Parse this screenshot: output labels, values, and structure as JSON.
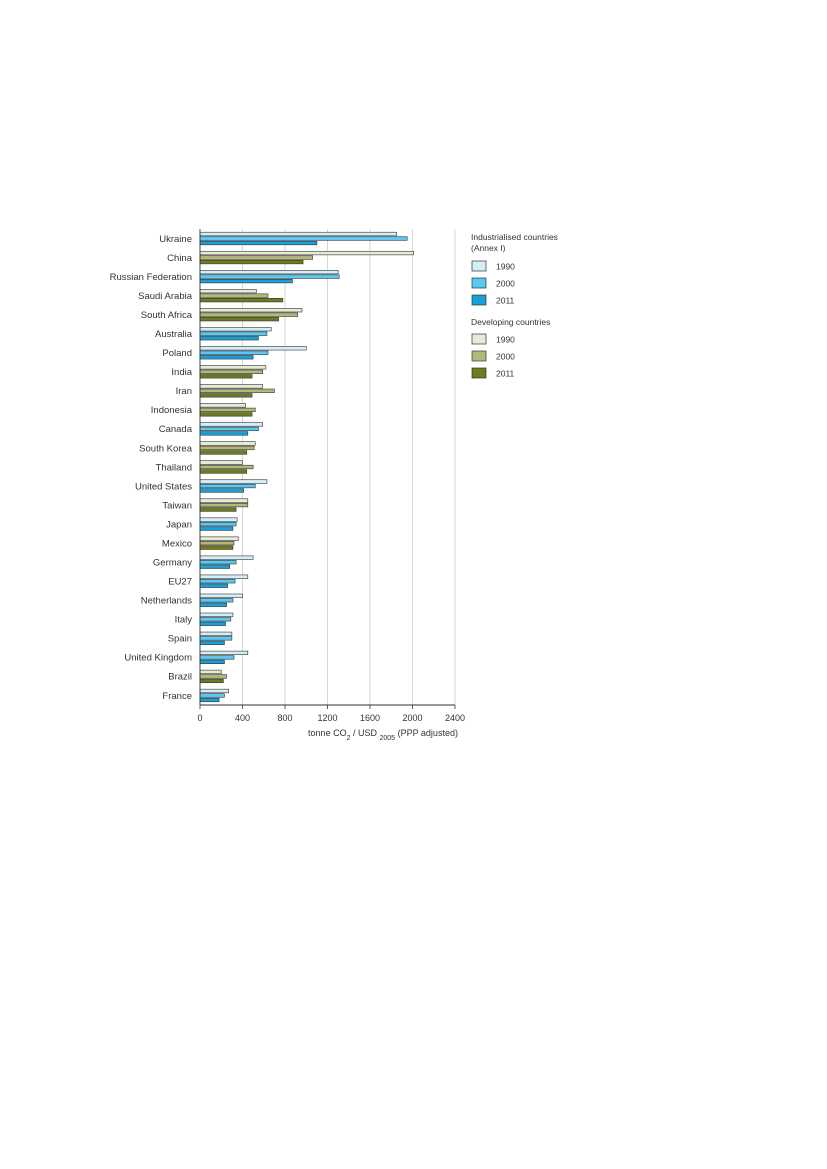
{
  "chart_data": {
    "type": "bar",
    "orientation": "horizontal",
    "categories": [
      "Ukraine",
      "China",
      "Russian Federation",
      "Saudi Arabia",
      "South Africa",
      "Australia",
      "Poland",
      "India",
      "Iran",
      "Indonesia",
      "Canada",
      "South Korea",
      "Thailand",
      "United States",
      "Taiwan",
      "Japan",
      "Mexico",
      "Germany",
      "EU27",
      "Netherlands",
      "Italy",
      "Spain",
      "United Kingdom",
      "Brazil",
      "France"
    ],
    "group": [
      "industrialised",
      "developing",
      "industrialised",
      "developing",
      "developing",
      "industrialised",
      "industrialised",
      "developing",
      "developing",
      "developing",
      "industrialised",
      "developing",
      "developing",
      "industrialised",
      "developing",
      "industrialised",
      "developing",
      "industrialised",
      "industrialised",
      "industrialised",
      "industrialised",
      "industrialised",
      "industrialised",
      "developing",
      "industrialised"
    ],
    "years": [
      "1990",
      "2000",
      "2011"
    ],
    "values": {
      "1990": [
        1850,
        2010,
        1300,
        530,
        960,
        670,
        1000,
        620,
        590,
        430,
        590,
        520,
        400,
        630,
        450,
        350,
        360,
        500,
        450,
        400,
        310,
        300,
        450,
        200,
        270
      ],
      "2000": [
        1950,
        1060,
        1310,
        640,
        920,
        630,
        640,
        590,
        700,
        520,
        550,
        510,
        500,
        520,
        450,
        340,
        320,
        340,
        330,
        310,
        290,
        300,
        320,
        250,
        230
      ],
      "2011": [
        1100,
        970,
        870,
        780,
        740,
        550,
        500,
        490,
        490,
        490,
        450,
        440,
        440,
        410,
        340,
        310,
        310,
        280,
        260,
        250,
        240,
        230,
        230,
        220,
        180
      ]
    },
    "xticks": [
      "0",
      "400",
      "800",
      "1200",
      "1600",
      "2000",
      "2400"
    ],
    "xlim": [
      0,
      2400
    ],
    "xlabel_parts": {
      "pre": "tonne CO",
      "sub1": "2",
      "mid": " / USD ",
      "sub2": "2005",
      "post": " (PPP adjusted)"
    },
    "grid": true,
    "legend_position": "right",
    "legend": {
      "industrialised_title_line1": "Industrialised countries",
      "industrialised_title_line2": "(Annex I)",
      "developing_title": "Developing countries"
    },
    "colors": {
      "industrialised": {
        "1990": "#d4eef9",
        "2000": "#5ac8f0",
        "2011": "#1c9fd8"
      },
      "developing": {
        "1990": "#e6ebd5",
        "2000": "#b3b77a",
        "2011": "#707a1e"
      },
      "grid": "#cccccc",
      "outline": "#333333"
    }
  }
}
